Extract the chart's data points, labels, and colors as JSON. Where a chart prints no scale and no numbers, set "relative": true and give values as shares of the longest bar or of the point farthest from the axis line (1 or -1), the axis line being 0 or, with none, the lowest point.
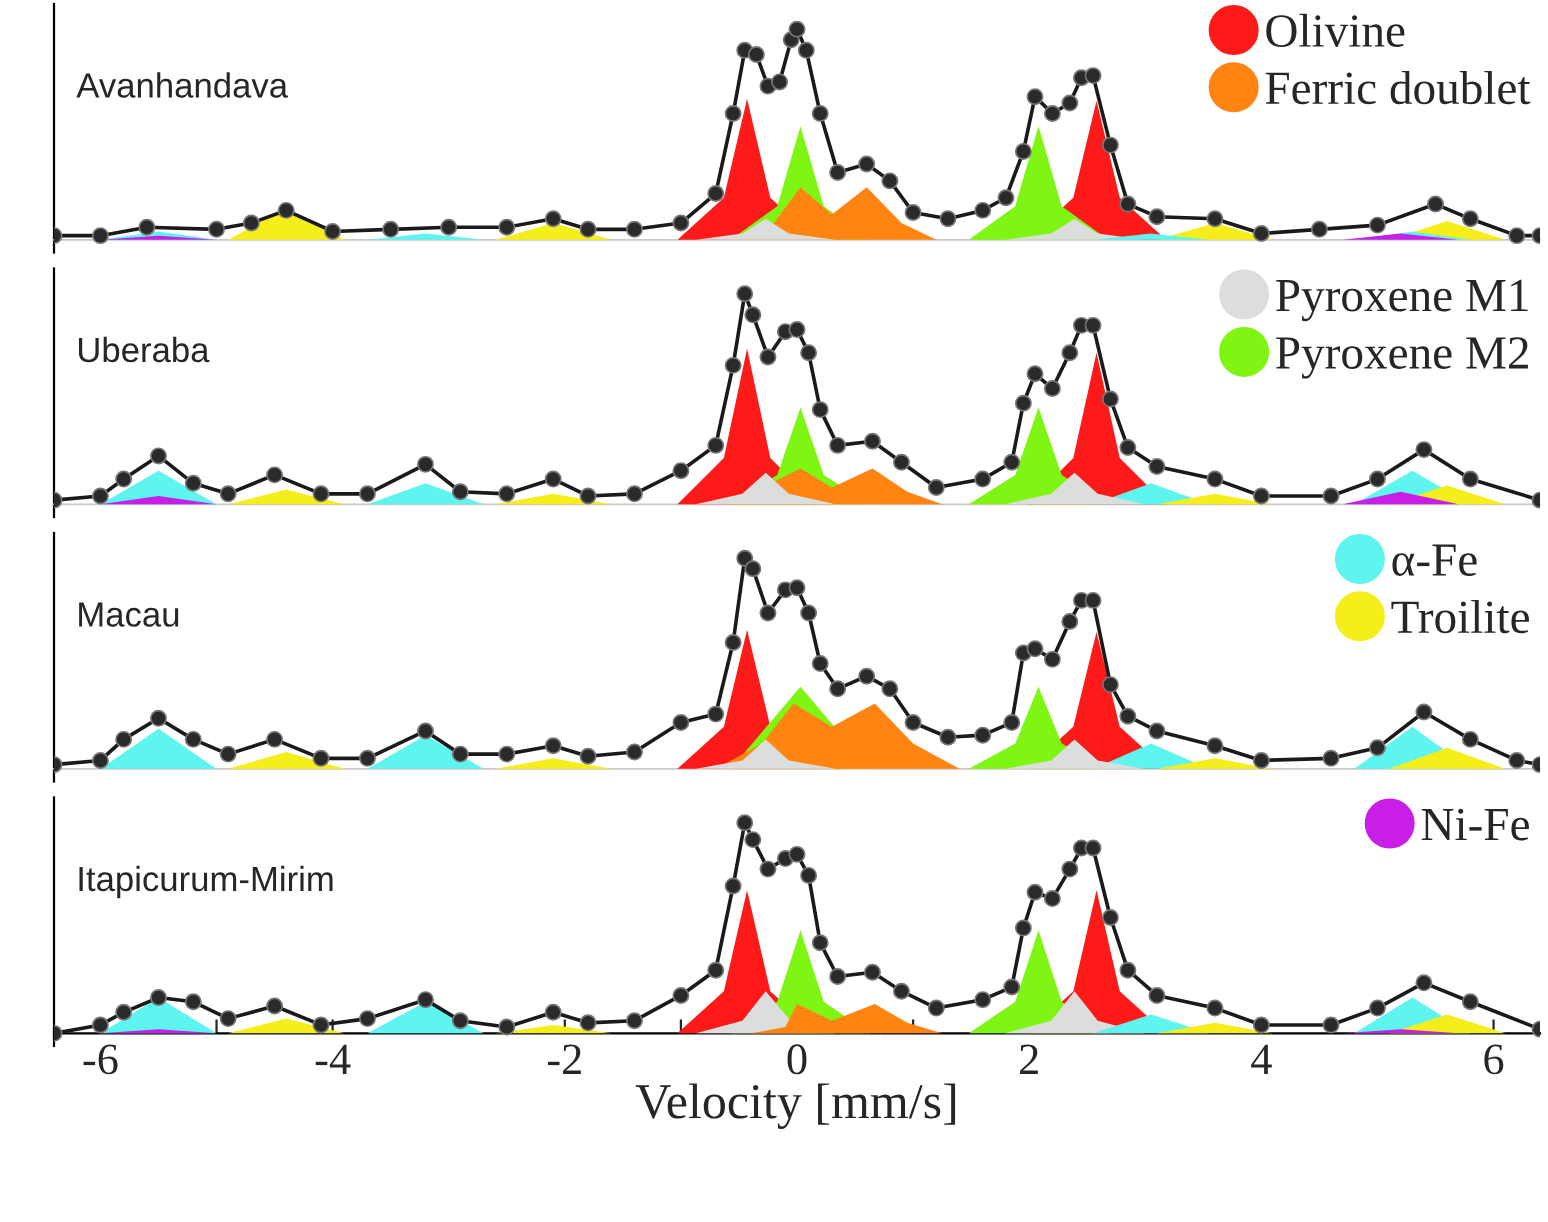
{
  "chart_data": [
    {
      "type": "area",
      "title": "Avanhandava",
      "relative": true,
      "xlim": [
        -6.4,
        6.4
      ],
      "tick_labels": false,
      "legend": "top right",
      "series": [
        {
          "name": "Olivine",
          "color": "#ff1a1a",
          "x": [
            -1.03,
            -0.63,
            -0.43,
            -0.23,
            0.17,
            1.98,
            2.38,
            2.58,
            2.78,
            3.18
          ],
          "values": [
            0,
            0.2,
            0.67,
            0.2,
            0,
            0,
            0.2,
            0.66,
            0.2,
            0
          ]
        },
        {
          "name": "Ferric doublet",
          "color": "#ff8412",
          "x": [
            -0.6,
            -0.2,
            0.03,
            0.3,
            0.6,
            0.9,
            1.2
          ],
          "values": [
            0,
            0.08,
            0.25,
            0.12,
            0.25,
            0.08,
            0
          ]
        },
        {
          "color": "#dcdedd",
          "x": [
            -0.87,
            -0.47,
            -0.27,
            -0.07,
            0.33,
            1.79,
            2.19,
            2.39,
            2.59,
            2.99
          ],
          "values": [
            0,
            0.03,
            0.1,
            0.03,
            0,
            0,
            0.03,
            0.1,
            0.03,
            0
          ]
        },
        {
          "color": "#7ef512",
          "x": [
            -0.57,
            -0.17,
            0.03,
            0.23,
            0.63,
            1.48,
            1.88,
            2.08,
            2.28,
            2.68
          ],
          "values": [
            0,
            0.16,
            0.54,
            0.16,
            0,
            0,
            0.16,
            0.54,
            0.16,
            0
          ]
        },
        {
          "color": "#5ef5f0",
          "x": [
            -6.0,
            -5.5,
            -5.0,
            -3.7,
            -3.2,
            -2.7,
            2.55,
            3.05,
            3.55,
            4.8,
            5.3,
            5.8
          ],
          "values": [
            0,
            0.04,
            0,
            0,
            0.03,
            0,
            0,
            0.03,
            0,
            0,
            0.04,
            0
          ]
        },
        {
          "color": "#f5ee1a",
          "x": [
            -4.9,
            -4.4,
            -3.9,
            -2.6,
            -2.1,
            -1.6,
            3.1,
            3.6,
            4.1,
            5.1,
            5.6,
            6.1
          ],
          "values": [
            0,
            0.15,
            0,
            0,
            0.08,
            0,
            0,
            0.08,
            0,
            0,
            0.09,
            0
          ]
        },
        {
          "color": "#c81ee6",
          "x": [
            -6.0,
            -5.5,
            -5.0,
            4.7,
            5.2,
            5.7
          ],
          "values": [
            0,
            0.02,
            0,
            0,
            0.03,
            0
          ]
        },
        {
          "type": "line",
          "color": "#1a1a1a",
          "marker": "circle",
          "x": [
            -6.4,
            -6.0,
            -5.6,
            -5.0,
            -4.7,
            -4.4,
            -4.0,
            -3.5,
            -3.0,
            -2.5,
            -2.1,
            -1.8,
            -1.4,
            -1.0,
            -0.7,
            -0.55,
            -0.45,
            -0.35,
            -0.25,
            -0.15,
            -0.05,
            0.0,
            0.08,
            0.2,
            0.35,
            0.6,
            0.8,
            1.0,
            1.3,
            1.6,
            1.8,
            1.95,
            2.05,
            2.2,
            2.35,
            2.45,
            2.55,
            2.7,
            2.85,
            3.1,
            3.6,
            4.0,
            4.5,
            5.0,
            5.5,
            5.8,
            6.2,
            6.4
          ],
          "values": [
            0.02,
            0.02,
            0.06,
            0.05,
            0.08,
            0.14,
            0.04,
            0.05,
            0.06,
            0.06,
            0.1,
            0.05,
            0.05,
            0.08,
            0.22,
            0.6,
            0.9,
            0.88,
            0.73,
            0.75,
            0.95,
            1.0,
            0.9,
            0.6,
            0.32,
            0.36,
            0.28,
            0.13,
            0.1,
            0.14,
            0.2,
            0.42,
            0.68,
            0.6,
            0.65,
            0.77,
            0.78,
            0.45,
            0.17,
            0.11,
            0.1,
            0.03,
            0.05,
            0.07,
            0.17,
            0.1,
            0.02,
            0.02
          ]
        }
      ]
    },
    {
      "type": "area",
      "title": "Uberaba",
      "relative": true,
      "xlim": [
        -6.4,
        6.4
      ],
      "tick_labels": false,
      "legend": "top right",
      "series": [
        {
          "color": "#ff1a1a",
          "x": [
            -1.03,
            -0.63,
            -0.43,
            -0.23,
            0.17,
            1.98,
            2.38,
            2.58,
            2.78,
            3.18
          ],
          "values": [
            0,
            0.22,
            0.74,
            0.22,
            0,
            0,
            0.22,
            0.72,
            0.22,
            0
          ]
        },
        {
          "color": "#ff8412",
          "x": [
            -0.6,
            0.03,
            0.3,
            0.65,
            0.95,
            1.25
          ],
          "values": [
            0,
            0.17,
            0.08,
            0.17,
            0.06,
            0
          ]
        },
        {
          "name": "Pyroxene M1",
          "color": "#dcdedd",
          "x": [
            -0.87,
            -0.47,
            -0.27,
            -0.07,
            0.33,
            1.79,
            2.19,
            2.39,
            2.59,
            2.99
          ],
          "values": [
            0,
            0.05,
            0.15,
            0.05,
            0,
            0,
            0.05,
            0.15,
            0.05,
            0
          ]
        },
        {
          "name": "Pyroxene M2",
          "color": "#7ef512",
          "x": [
            -0.57,
            -0.17,
            0.03,
            0.23,
            0.63,
            1.48,
            1.88,
            2.08,
            2.28,
            2.68
          ],
          "values": [
            0,
            0.14,
            0.46,
            0.14,
            0,
            0,
            0.14,
            0.46,
            0.14,
            0
          ]
        },
        {
          "color": "#5ef5f0",
          "x": [
            -6.0,
            -5.5,
            -5.0,
            -3.7,
            -3.2,
            -2.7,
            2.55,
            3.05,
            3.55,
            4.8,
            5.3,
            5.8
          ],
          "values": [
            0,
            0.16,
            0,
            0,
            0.1,
            0,
            0,
            0.1,
            0,
            0,
            0.16,
            0
          ]
        },
        {
          "color": "#f5ee1a",
          "x": [
            -4.9,
            -4.4,
            -3.9,
            -2.6,
            -2.1,
            -1.6,
            3.1,
            3.6,
            4.1,
            5.1,
            5.6,
            6.1
          ],
          "values": [
            0,
            0.07,
            0,
            0,
            0.05,
            0,
            0,
            0.05,
            0,
            0,
            0.09,
            0
          ]
        },
        {
          "color": "#c81ee6",
          "x": [
            -6.0,
            -5.5,
            -5.0,
            4.7,
            5.2,
            5.7
          ],
          "values": [
            0,
            0.04,
            0,
            0,
            0.06,
            0
          ]
        },
        {
          "type": "line",
          "color": "#1a1a1a",
          "marker": "circle",
          "x": [
            -6.4,
            -6.0,
            -5.8,
            -5.5,
            -5.2,
            -4.9,
            -4.5,
            -4.1,
            -3.7,
            -3.2,
            -2.9,
            -2.5,
            -2.1,
            -1.8,
            -1.4,
            -1.0,
            -0.7,
            -0.55,
            -0.45,
            -0.38,
            -0.25,
            -0.1,
            0.0,
            0.1,
            0.2,
            0.35,
            0.65,
            0.9,
            1.2,
            1.6,
            1.85,
            1.95,
            2.05,
            2.2,
            2.35,
            2.45,
            2.55,
            2.7,
            2.85,
            3.1,
            3.6,
            4.0,
            4.6,
            5.0,
            5.4,
            5.8,
            6.4
          ],
          "values": [
            0.02,
            0.04,
            0.12,
            0.23,
            0.1,
            0.05,
            0.14,
            0.05,
            0.05,
            0.19,
            0.06,
            0.05,
            0.12,
            0.04,
            0.05,
            0.16,
            0.28,
            0.66,
            1.0,
            0.9,
            0.7,
            0.82,
            0.83,
            0.72,
            0.45,
            0.28,
            0.3,
            0.2,
            0.08,
            0.12,
            0.2,
            0.48,
            0.62,
            0.55,
            0.72,
            0.85,
            0.85,
            0.5,
            0.27,
            0.18,
            0.12,
            0.04,
            0.04,
            0.12,
            0.26,
            0.12,
            0.02
          ]
        }
      ]
    },
    {
      "type": "area",
      "title": "Macau",
      "relative": true,
      "xlim": [
        -6.4,
        6.4
      ],
      "tick_labels": false,
      "legend": "top right",
      "series": [
        {
          "color": "#ff1a1a",
          "x": [
            -1.03,
            -0.63,
            -0.43,
            -0.23,
            0.17,
            1.98,
            2.38,
            2.58,
            2.78,
            3.18
          ],
          "values": [
            0,
            0.2,
            0.66,
            0.2,
            0,
            0,
            0.2,
            0.65,
            0.2,
            0
          ]
        },
        {
          "color": "#ff8412",
          "x": [
            -0.7,
            -0.3,
            -0.03,
            0.3,
            0.67,
            1.0,
            1.4
          ],
          "values": [
            0,
            0.12,
            0.31,
            0.2,
            0.31,
            0.12,
            0
          ]
        },
        {
          "color": "#dcdedd",
          "x": [
            -0.87,
            -0.47,
            -0.27,
            -0.07,
            0.33,
            1.79,
            2.19,
            2.39,
            2.59,
            2.99
          ],
          "values": [
            0,
            0.04,
            0.14,
            0.04,
            0,
            0,
            0.04,
            0.14,
            0.04,
            0
          ]
        },
        {
          "color": "#7ef512",
          "x": [
            -0.57,
            0.03,
            0.63,
            1.48,
            1.88,
            2.08,
            2.28,
            2.68
          ],
          "values": [
            0,
            0.39,
            0,
            0,
            0.12,
            0.39,
            0.12,
            0
          ]
        },
        {
          "name": "α-Fe",
          "color": "#5ef5f0",
          "x": [
            -6.0,
            -5.5,
            -5.0,
            -3.7,
            -3.2,
            -2.7,
            2.55,
            3.05,
            3.55,
            4.8,
            5.3,
            5.8
          ],
          "values": [
            0,
            0.19,
            0,
            0,
            0.16,
            0,
            0,
            0.12,
            0,
            0,
            0.2,
            0
          ]
        },
        {
          "name": "Troilite",
          "color": "#f5ee1a",
          "x": [
            -4.9,
            -4.4,
            -3.9,
            -2.6,
            -2.1,
            -1.6,
            3.1,
            3.6,
            4.1,
            5.1,
            5.6,
            6.1
          ],
          "values": [
            0,
            0.08,
            0,
            0,
            0.05,
            0,
            0,
            0.05,
            0,
            0,
            0.1,
            0
          ]
        },
        {
          "type": "line",
          "color": "#1a1a1a",
          "marker": "circle",
          "x": [
            -6.4,
            -6.0,
            -5.8,
            -5.5,
            -5.2,
            -4.9,
            -4.5,
            -4.1,
            -3.7,
            -3.2,
            -2.9,
            -2.5,
            -2.1,
            -1.8,
            -1.4,
            -1.0,
            -0.7,
            -0.55,
            -0.45,
            -0.38,
            -0.25,
            -0.1,
            0.0,
            0.1,
            0.2,
            0.35,
            0.6,
            0.8,
            1.0,
            1.3,
            1.6,
            1.85,
            1.95,
            2.05,
            2.2,
            2.35,
            2.45,
            2.55,
            2.7,
            2.85,
            3.1,
            3.6,
            4.0,
            4.6,
            5.0,
            5.4,
            5.8,
            6.2,
            6.4
          ],
          "values": [
            0.02,
            0.04,
            0.14,
            0.24,
            0.14,
            0.07,
            0.14,
            0.05,
            0.05,
            0.18,
            0.07,
            0.07,
            0.11,
            0.06,
            0.08,
            0.22,
            0.26,
            0.6,
            1.0,
            0.95,
            0.74,
            0.85,
            0.86,
            0.74,
            0.5,
            0.38,
            0.44,
            0.38,
            0.22,
            0.15,
            0.16,
            0.22,
            0.55,
            0.57,
            0.52,
            0.7,
            0.8,
            0.8,
            0.4,
            0.25,
            0.18,
            0.11,
            0.04,
            0.05,
            0.1,
            0.27,
            0.14,
            0.04,
            0.02
          ]
        }
      ]
    },
    {
      "type": "area",
      "title": "Itapicurum-Mirim",
      "relative": true,
      "xlim": [
        -6.4,
        6.4
      ],
      "xticks": [
        -6,
        {
          "value": -5,
          "label": null
        },
        -4,
        {
          "value": -3,
          "label": null
        },
        -2,
        {
          "value": -1,
          "label": null
        },
        0,
        {
          "value": 1,
          "label": null
        },
        2,
        {
          "value": 3,
          "label": null
        },
        4,
        {
          "value": 5,
          "label": null
        },
        6
      ],
      "tick_labels": "x",
      "xlabel": "Velocity [mm/s]",
      "legend": "top right",
      "series": [
        {
          "color": "#ff1a1a",
          "x": [
            -1.03,
            -0.63,
            -0.43,
            -0.23,
            0.17,
            1.98,
            2.38,
            2.58,
            2.78,
            3.18
          ],
          "values": [
            0,
            0.2,
            0.68,
            0.2,
            0,
            0,
            0.2,
            0.68,
            0.2,
            0
          ]
        },
        {
          "color": "#ff8412",
          "x": [
            -0.4,
            -0.1,
            0.0,
            0.3,
            0.67,
            0.95,
            1.25
          ],
          "values": [
            0,
            0.03,
            0.14,
            0.06,
            0.14,
            0.05,
            0
          ]
        },
        {
          "color": "#dcdedd",
          "x": [
            -0.87,
            -0.47,
            -0.27,
            -0.07,
            0.33,
            1.79,
            2.19,
            2.39,
            2.59,
            2.99
          ],
          "values": [
            0,
            0.06,
            0.2,
            0.07,
            0,
            0,
            0.06,
            0.2,
            0.06,
            0
          ]
        },
        {
          "color": "#7ef512",
          "x": [
            -0.57,
            -0.17,
            0.03,
            0.23,
            0.63,
            1.48,
            1.88,
            2.08,
            2.28,
            2.68
          ],
          "values": [
            0,
            0.15,
            0.49,
            0.15,
            0,
            0,
            0.15,
            0.49,
            0.15,
            0
          ]
        },
        {
          "color": "#5ef5f0",
          "x": [
            -6.0,
            -5.5,
            -5.0,
            -3.7,
            -3.2,
            -2.7,
            2.55,
            3.05,
            3.55,
            4.8,
            5.3,
            5.8
          ],
          "values": [
            0,
            0.17,
            0,
            0,
            0.15,
            0,
            0,
            0.09,
            0,
            0,
            0.17,
            0
          ]
        },
        {
          "color": "#f5ee1a",
          "x": [
            -4.9,
            -4.4,
            -3.9,
            -2.6,
            -2.1,
            -1.6,
            3.1,
            3.6,
            4.1,
            5.1,
            5.6,
            6.1
          ],
          "values": [
            0,
            0.07,
            0,
            0,
            0.04,
            0,
            0,
            0.05,
            0,
            0,
            0.09,
            0
          ]
        },
        {
          "name": "Ni-Fe",
          "color": "#c81ee6",
          "x": [
            -6.0,
            -5.5,
            -5.0,
            4.7,
            5.2,
            5.7
          ],
          "values": [
            0,
            0.02,
            0,
            0,
            0.02,
            0
          ]
        },
        {
          "type": "line",
          "color": "#1a1a1a",
          "marker": "circle",
          "x": [
            -6.4,
            -6.0,
            -5.8,
            -5.5,
            -5.2,
            -4.9,
            -4.5,
            -4.1,
            -3.7,
            -3.2,
            -2.9,
            -2.5,
            -2.1,
            -1.8,
            -1.4,
            -1.0,
            -0.7,
            -0.55,
            -0.45,
            -0.38,
            -0.25,
            -0.1,
            0.0,
            0.1,
            0.2,
            0.35,
            0.65,
            0.9,
            1.2,
            1.6,
            1.85,
            1.95,
            2.05,
            2.2,
            2.35,
            2.45,
            2.55,
            2.7,
            2.85,
            3.1,
            3.6,
            4.0,
            4.6,
            5.0,
            5.4,
            5.8,
            6.4
          ],
          "values": [
            0.0,
            0.04,
            0.1,
            0.17,
            0.15,
            0.07,
            0.13,
            0.04,
            0.07,
            0.16,
            0.06,
            0.03,
            0.1,
            0.05,
            0.06,
            0.18,
            0.3,
            0.7,
            1.0,
            0.92,
            0.78,
            0.83,
            0.85,
            0.75,
            0.43,
            0.27,
            0.29,
            0.2,
            0.12,
            0.16,
            0.22,
            0.5,
            0.67,
            0.64,
            0.78,
            0.88,
            0.88,
            0.55,
            0.3,
            0.18,
            0.12,
            0.04,
            0.04,
            0.12,
            0.24,
            0.15,
            0.02
          ]
        }
      ]
    }
  ]
}
